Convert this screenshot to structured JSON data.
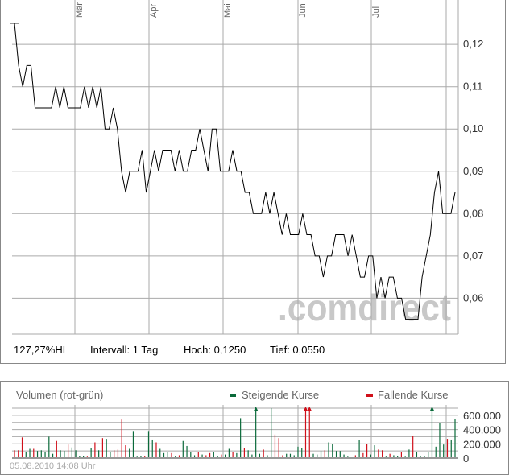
{
  "chart_data": [
    {
      "type": "line",
      "x_ticks": [
        "Mär",
        "Apr",
        "Mai",
        "Jun",
        "Jul"
      ],
      "y_ticks": [
        "0,12",
        "0,11",
        "0,10",
        "0,09",
        "0,08",
        "0,07",
        "0,06"
      ],
      "y_tick_values": [
        0.12,
        0.11,
        0.1,
        0.09,
        0.08,
        0.07,
        0.06
      ],
      "ylim": [
        0.0515,
        0.1305
      ],
      "grid": true,
      "series": [
        {
          "values": [
            0.125,
            0.115,
            0.11,
            0.115,
            0.115,
            0.105,
            0.105,
            0.105,
            0.105,
            0.105,
            0.11,
            0.105,
            0.11,
            0.105,
            0.105,
            0.105,
            0.105,
            0.11,
            0.105,
            0.11,
            0.105,
            0.11,
            0.1,
            0.1,
            0.105,
            0.1,
            0.09,
            0.085,
            0.09,
            0.09,
            0.09,
            0.095,
            0.085,
            0.09,
            0.095,
            0.09,
            0.095,
            0.095,
            0.095,
            0.09,
            0.095,
            0.09,
            0.09,
            0.095,
            0.095,
            0.1,
            0.095,
            0.09,
            0.1,
            0.1,
            0.09,
            0.09,
            0.09,
            0.095,
            0.09,
            0.09,
            0.085,
            0.085,
            0.08,
            0.08,
            0.08,
            0.085,
            0.08,
            0.085,
            0.08,
            0.075,
            0.08,
            0.075,
            0.075,
            0.075,
            0.08,
            0.075,
            0.075,
            0.07,
            0.07,
            0.065,
            0.07,
            0.07,
            0.075,
            0.075,
            0.075,
            0.07,
            0.075,
            0.07,
            0.065,
            0.065,
            0.07,
            0.07,
            0.06,
            0.065,
            0.06,
            0.065,
            0.065,
            0.06,
            0.06,
            0.055,
            0.055,
            0.055,
            0.055,
            0.065,
            0.07,
            0.075,
            0.085,
            0.09,
            0.08,
            0.08,
            0.08,
            0.085
          ]
        }
      ]
    },
    {
      "type": "bar",
      "title": "Volumen (rot-grün)",
      "legend": [
        {
          "name": "Steigende Kurse",
          "color": "#0a6a3a"
        },
        {
          "name": "Fallende Kurse",
          "color": "#d0101a"
        }
      ],
      "legend_placement": "top-right",
      "y_ticks": [
        "600.000",
        "400.000",
        "200.000",
        "0"
      ],
      "y_tick_values": [
        600000,
        400000,
        200000,
        0
      ],
      "ylim": [
        0,
        700000
      ],
      "clipped_marker": "arrow",
      "bars": [
        [
          110000,
          "d"
        ],
        [
          110000,
          "d"
        ],
        [
          290000,
          "d"
        ],
        [
          80000,
          "u"
        ],
        [
          130000,
          "u"
        ],
        [
          130000,
          "d"
        ],
        [
          100000,
          "u"
        ],
        [
          110000,
          "u"
        ],
        [
          80000,
          "u"
        ],
        [
          300000,
          "u"
        ],
        [
          60000,
          "u"
        ],
        [
          240000,
          "d"
        ],
        [
          110000,
          "u"
        ],
        [
          100000,
          "u"
        ],
        [
          190000,
          "d"
        ],
        [
          150000,
          "u"
        ],
        [
          110000,
          "u"
        ],
        [
          30000,
          "u"
        ],
        [
          30000,
          "u"
        ],
        [
          20000,
          "d"
        ],
        [
          140000,
          "u"
        ],
        [
          220000,
          "d"
        ],
        [
          110000,
          "u"
        ],
        [
          280000,
          "d"
        ],
        [
          270000,
          "u"
        ],
        [
          80000,
          "u"
        ],
        [
          110000,
          "d"
        ],
        [
          120000,
          "d"
        ],
        [
          540000,
          "d"
        ],
        [
          180000,
          "d"
        ],
        [
          130000,
          "u"
        ],
        [
          380000,
          "u"
        ],
        [
          20000,
          "u"
        ],
        [
          30000,
          "u"
        ],
        [
          30000,
          "d"
        ],
        [
          380000,
          "u"
        ],
        [
          260000,
          "u"
        ],
        [
          220000,
          "d"
        ],
        [
          130000,
          "u"
        ],
        [
          70000,
          "u"
        ],
        [
          90000,
          "u"
        ],
        [
          70000,
          "d"
        ],
        [
          30000,
          "u"
        ],
        [
          40000,
          "d"
        ],
        [
          240000,
          "u"
        ],
        [
          170000,
          "u"
        ],
        [
          80000,
          "u"
        ],
        [
          40000,
          "u"
        ],
        [
          90000,
          "d"
        ],
        [
          50000,
          "u"
        ],
        [
          40000,
          "d"
        ],
        [
          70000,
          "d"
        ],
        [
          80000,
          "u"
        ],
        [
          30000,
          "u"
        ],
        [
          50000,
          "d"
        ],
        [
          50000,
          "u"
        ],
        [
          130000,
          "u"
        ],
        [
          80000,
          "d"
        ],
        [
          70000,
          "u"
        ],
        [
          560000,
          "u"
        ],
        [
          140000,
          "d"
        ],
        [
          110000,
          "u"
        ],
        [
          50000,
          "u"
        ],
        [
          900000,
          "u"
        ],
        [
          60000,
          "u"
        ],
        [
          120000,
          "d"
        ],
        [
          40000,
          "u"
        ],
        [
          700000,
          "u"
        ],
        [
          330000,
          "d"
        ],
        [
          280000,
          "d"
        ],
        [
          40000,
          "d"
        ],
        [
          60000,
          "u"
        ],
        [
          60000,
          "u"
        ],
        [
          40000,
          "u"
        ],
        [
          160000,
          "u"
        ],
        [
          140000,
          "u"
        ],
        [
          900000,
          "d"
        ],
        [
          900000,
          "d"
        ],
        [
          60000,
          "u"
        ],
        [
          50000,
          "u"
        ],
        [
          100000,
          "u"
        ],
        [
          110000,
          "d"
        ],
        [
          220000,
          "u"
        ],
        [
          200000,
          "u"
        ],
        [
          100000,
          "u"
        ],
        [
          100000,
          "u"
        ],
        [
          50000,
          "u"
        ],
        [
          20000,
          "u"
        ],
        [
          10000,
          "u"
        ],
        [
          40000,
          "d"
        ],
        [
          250000,
          "u"
        ],
        [
          70000,
          "d"
        ],
        [
          200000,
          "d"
        ],
        [
          50000,
          "u"
        ],
        [
          180000,
          "u"
        ],
        [
          120000,
          "d"
        ],
        [
          110000,
          "d"
        ],
        [
          20000,
          "u"
        ],
        [
          60000,
          "d"
        ],
        [
          40000,
          "u"
        ],
        [
          30000,
          "u"
        ],
        [
          90000,
          "d"
        ],
        [
          20000,
          "u"
        ],
        [
          120000,
          "u"
        ],
        [
          310000,
          "d"
        ],
        [
          80000,
          "u"
        ],
        [
          20000,
          "u"
        ],
        [
          30000,
          "u"
        ],
        [
          90000,
          "u"
        ],
        [
          900000,
          "u"
        ],
        [
          160000,
          "u"
        ],
        [
          490000,
          "u"
        ],
        [
          190000,
          "u"
        ],
        [
          270000,
          "d"
        ],
        [
          260000,
          "u"
        ],
        [
          550000,
          "u"
        ]
      ]
    }
  ],
  "info": {
    "hl": "127,27%HL",
    "interval": "Intervall: 1 Tag",
    "high": "Hoch: 0,1250",
    "low": "Tief: 0,0550"
  },
  "watermark": ".comdirect",
  "timestamp": "05.08.2010 14:08 Uhr",
  "colors": {
    "up": "#0a6a3a",
    "down": "#d0101a",
    "grid": "#aaaaaa"
  }
}
